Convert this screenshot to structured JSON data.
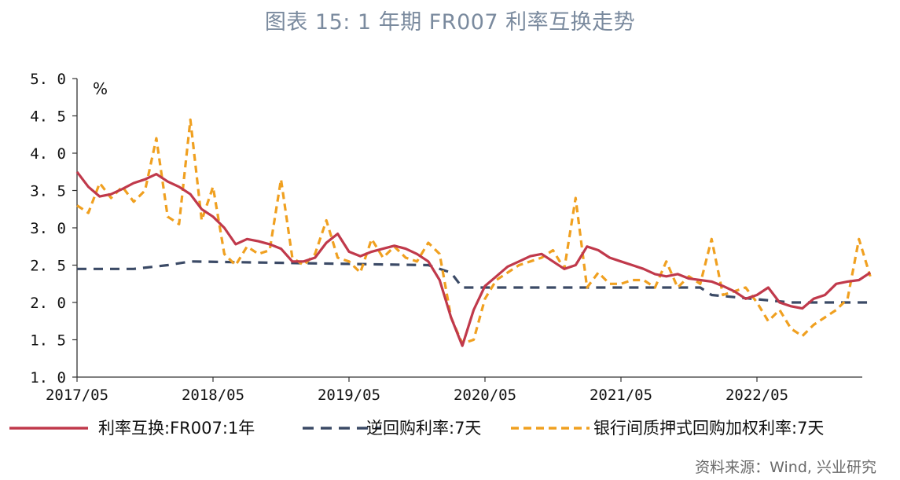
{
  "chart_data": {
    "type": "line",
    "title": "图表 15: 1 年期 FR007 利率互换走势",
    "unit_label": "%",
    "source": "资料来源：Wind, 兴业研究",
    "ylim": [
      1.0,
      5.0
    ],
    "y_ticks": [
      "5.0",
      "4.5",
      "4.0",
      "3.5",
      "3.0",
      "2.5",
      "2.0",
      "1.5",
      "1.0"
    ],
    "x_ticks": [
      "2017/05",
      "2018/05",
      "2019/05",
      "2020/05",
      "2021/05",
      "2022/05"
    ],
    "xlim": [
      "2017/05",
      "2023/03"
    ],
    "grid": false,
    "legend_position": "bottom",
    "colors": {
      "swap": "#c0394b",
      "repo": "#3b4a66",
      "interbank": "#f0a020"
    },
    "series": [
      {
        "name": "利率互换:FR007:1年",
        "style": "solid",
        "x": [
          "2017/05",
          "2017/06",
          "2017/07",
          "2017/08",
          "2017/09",
          "2017/10",
          "2017/11",
          "2017/12",
          "2018/01",
          "2018/02",
          "2018/03",
          "2018/04",
          "2018/05",
          "2018/06",
          "2018/07",
          "2018/08",
          "2018/09",
          "2018/10",
          "2018/11",
          "2018/12",
          "2019/01",
          "2019/02",
          "2019/03",
          "2019/04",
          "2019/05",
          "2019/06",
          "2019/07",
          "2019/08",
          "2019/09",
          "2019/10",
          "2019/11",
          "2019/12",
          "2020/01",
          "2020/02",
          "2020/03",
          "2020/04",
          "2020/05",
          "2020/06",
          "2020/07",
          "2020/08",
          "2020/09",
          "2020/10",
          "2020/11",
          "2020/12",
          "2021/01",
          "2021/02",
          "2021/03",
          "2021/04",
          "2021/05",
          "2021/06",
          "2021/07",
          "2021/08",
          "2021/09",
          "2021/10",
          "2021/11",
          "2021/12",
          "2022/01",
          "2022/02",
          "2022/03",
          "2022/04",
          "2022/05",
          "2022/06",
          "2022/07",
          "2022/08",
          "2022/09",
          "2022/10",
          "2022/11",
          "2022/12",
          "2023/01",
          "2023/02",
          "2023/03"
        ],
        "values": [
          3.75,
          3.55,
          3.42,
          3.45,
          3.52,
          3.6,
          3.65,
          3.72,
          3.62,
          3.55,
          3.45,
          3.25,
          3.15,
          3.0,
          2.78,
          2.85,
          2.82,
          2.78,
          2.72,
          2.55,
          2.55,
          2.6,
          2.8,
          2.92,
          2.68,
          2.62,
          2.68,
          2.72,
          2.76,
          2.72,
          2.65,
          2.55,
          2.3,
          1.8,
          1.42,
          1.9,
          2.22,
          2.35,
          2.48,
          2.55,
          2.62,
          2.65,
          2.55,
          2.45,
          2.5,
          2.75,
          2.7,
          2.6,
          2.55,
          2.5,
          2.45,
          2.38,
          2.35,
          2.38,
          2.32,
          2.3,
          2.28,
          2.22,
          2.15,
          2.05,
          2.1,
          2.2,
          2.0,
          1.95,
          1.92,
          2.05,
          2.1,
          2.25,
          2.28,
          2.3,
          2.4
        ]
      },
      {
        "name": "逆回购利率:7天",
        "style": "dashed",
        "x": [
          "2017/05",
          "2017/10",
          "2018/01",
          "2018/03",
          "2019/12",
          "2020/02",
          "2020/03",
          "2020/11",
          "2021/12",
          "2022/01",
          "2022/08",
          "2023/03"
        ],
        "values": [
          2.45,
          2.45,
          2.5,
          2.55,
          2.5,
          2.4,
          2.2,
          2.2,
          2.2,
          2.1,
          2.0,
          2.0
        ]
      },
      {
        "name": "银行间质押式回购加权利率:7天",
        "style": "dashed",
        "x": [
          "2017/05",
          "2017/06",
          "2017/07",
          "2017/08",
          "2017/09",
          "2017/10",
          "2017/11",
          "2017/12",
          "2018/01",
          "2018/02",
          "2018/03",
          "2018/04",
          "2018/05",
          "2018/06",
          "2018/07",
          "2018/08",
          "2018/09",
          "2018/10",
          "2018/11",
          "2018/12",
          "2019/01",
          "2019/02",
          "2019/03",
          "2019/04",
          "2019/05",
          "2019/06",
          "2019/07",
          "2019/08",
          "2019/09",
          "2019/10",
          "2019/11",
          "2019/12",
          "2020/01",
          "2020/02",
          "2020/03",
          "2020/04",
          "2020/05",
          "2020/06",
          "2020/07",
          "2020/08",
          "2020/09",
          "2020/10",
          "2020/11",
          "2020/12",
          "2021/01",
          "2021/02",
          "2021/03",
          "2021/04",
          "2021/05",
          "2021/06",
          "2021/07",
          "2021/08",
          "2021/09",
          "2021/10",
          "2021/11",
          "2021/12",
          "2022/01",
          "2022/02",
          "2022/03",
          "2022/04",
          "2022/05",
          "2022/06",
          "2022/07",
          "2022/08",
          "2022/09",
          "2022/10",
          "2022/11",
          "2022/12",
          "2023/01",
          "2023/02",
          "2023/03"
        ],
        "values": [
          3.3,
          3.2,
          3.6,
          3.4,
          3.55,
          3.35,
          3.5,
          4.2,
          3.15,
          3.05,
          4.45,
          3.1,
          3.55,
          2.65,
          2.5,
          2.75,
          2.65,
          2.7,
          3.65,
          2.6,
          2.5,
          2.65,
          3.1,
          2.6,
          2.55,
          2.4,
          2.85,
          2.6,
          2.75,
          2.6,
          2.55,
          2.8,
          2.65,
          1.8,
          1.45,
          1.5,
          2.05,
          2.3,
          2.4,
          2.5,
          2.55,
          2.6,
          2.7,
          2.45,
          3.4,
          2.2,
          2.4,
          2.25,
          2.25,
          2.3,
          2.3,
          2.2,
          2.55,
          2.2,
          2.35,
          2.25,
          2.85,
          2.1,
          2.15,
          2.2,
          2.0,
          1.75,
          1.9,
          1.65,
          1.55,
          1.7,
          1.8,
          1.9,
          2.05,
          2.85,
          2.35
        ]
      }
    ]
  }
}
